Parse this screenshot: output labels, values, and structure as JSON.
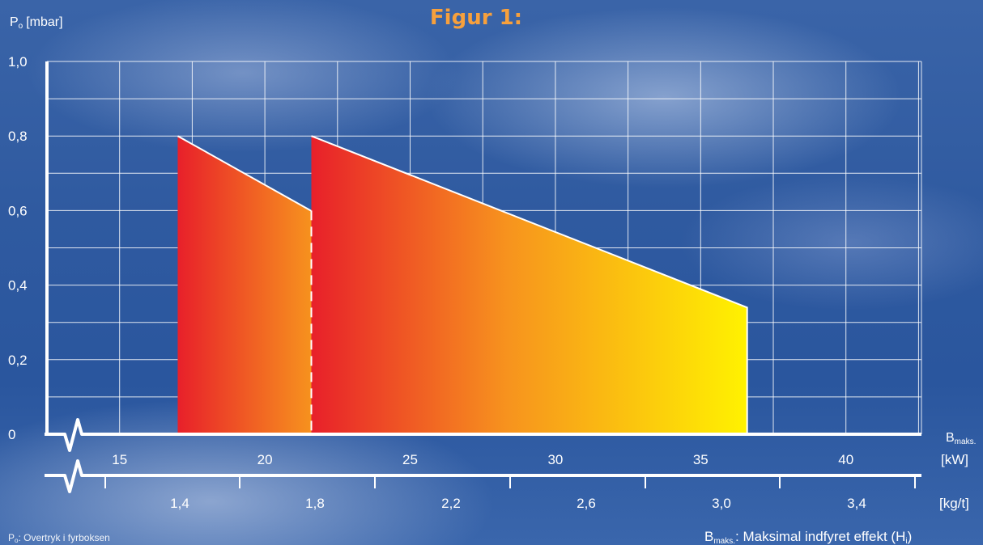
{
  "chart_data": {
    "type": "area",
    "title": "Figur 1:",
    "ylabel": "Po [mbar]",
    "ylabel_parts": {
      "main": "P",
      "sub": "o",
      "unit": "[mbar]"
    },
    "ylim": [
      0,
      1.0
    ],
    "y_ticks": [
      "1,0",
      "0,8",
      "0,6",
      "0,4",
      "0,2",
      "0"
    ],
    "x_axis_kw": {
      "unit": "[kW]",
      "ticks": [
        15,
        20,
        25,
        30,
        35,
        40
      ],
      "tick_labels": [
        "15",
        "20",
        "25",
        "30",
        "35",
        "40"
      ]
    },
    "x_axis_kgt": {
      "unit": "[kg/t]",
      "tick_labels": [
        "1,4",
        "1,8",
        "2,2",
        "2,6",
        "3,0",
        "3,4"
      ]
    },
    "xlabel_right": {
      "main": "B",
      "sub": "maks."
    },
    "series": [
      {
        "x": [
          17,
          17,
          27.3,
          27.3
        ],
        "y": [
          0,
          0.8,
          0.35,
          0
        ]
      },
      {
        "x": [
          21.6,
          21.6,
          36.6,
          36.6
        ],
        "y": [
          0,
          0.8,
          0.34,
          0
        ]
      }
    ],
    "dashed_line": {
      "x": 21.6,
      "y": [
        0,
        0.6
      ]
    },
    "grid": true,
    "colors": {
      "gradient_start": "#e8202a",
      "gradient_mid": "#f7931e",
      "gradient_end": "#fff200",
      "title": "#f7a03c",
      "lines": "#ffffff"
    }
  },
  "footnote_left": {
    "main": "P",
    "sub": "o",
    "text": ": Overtryk i fyrboksen"
  },
  "footnote_right": {
    "main": "B",
    "sub": "maks.",
    "text": ": Maksimal indfyret effekt (H",
    "sub2": "i",
    "close": ")"
  }
}
